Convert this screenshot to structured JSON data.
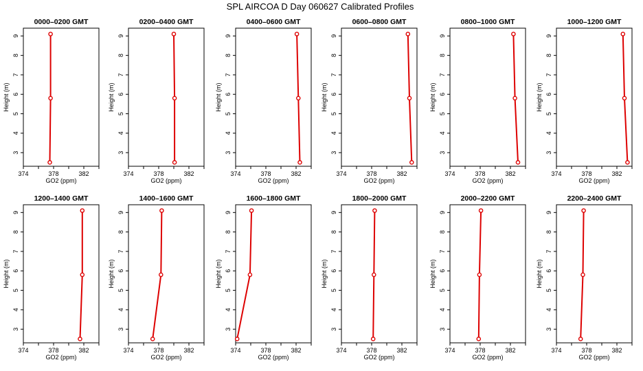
{
  "figure_title": "SPL AIRCOA D  Day 060627  Calibrated Profiles",
  "colors": {
    "series": "#dd0000",
    "axis": "#000000"
  },
  "chart_data": [
    {
      "type": "line",
      "title": "0000–0200 GMT",
      "xlabel": "GO2 (ppm)",
      "ylabel": "Height (m)",
      "xlim": [
        374,
        384
      ],
      "ylim": [
        2.3,
        9.4
      ],
      "xticks": [
        374,
        378,
        382
      ],
      "yticks": [
        3,
        4,
        5,
        6,
        7,
        8,
        9
      ],
      "grid": false,
      "series": [
        {
          "points": [
            {
              "x": 377.6,
              "y": 9.1
            },
            {
              "x": 377.6,
              "y": 5.8
            },
            {
              "x": 377.5,
              "y": 2.5
            }
          ]
        }
      ]
    },
    {
      "type": "line",
      "title": "0200–0400 GMT",
      "xlabel": "GO2 (ppm)",
      "ylabel": "Height (m)",
      "xlim": [
        374,
        384
      ],
      "ylim": [
        2.3,
        9.4
      ],
      "xticks": [
        374,
        378,
        382
      ],
      "yticks": [
        3,
        4,
        5,
        6,
        7,
        8,
        9
      ],
      "grid": false,
      "series": [
        {
          "points": [
            {
              "x": 380.0,
              "y": 9.1
            },
            {
              "x": 380.1,
              "y": 5.8
            },
            {
              "x": 380.1,
              "y": 2.5
            }
          ]
        }
      ]
    },
    {
      "type": "line",
      "title": "0400–0600 GMT",
      "xlabel": "GO2 (ppm)",
      "ylabel": "Height (m)",
      "xlim": [
        374,
        384
      ],
      "ylim": [
        2.3,
        9.4
      ],
      "xticks": [
        374,
        378,
        382
      ],
      "yticks": [
        3,
        4,
        5,
        6,
        7,
        8,
        9
      ],
      "grid": false,
      "series": [
        {
          "points": [
            {
              "x": 382.1,
              "y": 9.1
            },
            {
              "x": 382.3,
              "y": 5.8
            },
            {
              "x": 382.5,
              "y": 2.5
            }
          ]
        }
      ]
    },
    {
      "type": "line",
      "title": "0600–0800 GMT",
      "xlabel": "GO2 (ppm)",
      "ylabel": "Height (m)",
      "xlim": [
        374,
        384
      ],
      "ylim": [
        2.3,
        9.4
      ],
      "xticks": [
        374,
        378,
        382
      ],
      "yticks": [
        3,
        4,
        5,
        6,
        7,
        8,
        9
      ],
      "grid": false,
      "series": [
        {
          "points": [
            {
              "x": 382.8,
              "y": 9.1
            },
            {
              "x": 383.0,
              "y": 5.8
            },
            {
              "x": 383.3,
              "y": 2.5
            }
          ]
        }
      ]
    },
    {
      "type": "line",
      "title": "0800–1000 GMT",
      "xlabel": "GO2 (ppm)",
      "ylabel": "Height (m)",
      "xlim": [
        374,
        384
      ],
      "ylim": [
        2.3,
        9.4
      ],
      "xticks": [
        374,
        378,
        382
      ],
      "yticks": [
        3,
        4,
        5,
        6,
        7,
        8,
        9
      ],
      "grid": false,
      "series": [
        {
          "points": [
            {
              "x": 382.4,
              "y": 9.1
            },
            {
              "x": 382.6,
              "y": 5.8
            },
            {
              "x": 383.0,
              "y": 2.5
            }
          ]
        }
      ]
    },
    {
      "type": "line",
      "title": "1000–1200 GMT",
      "xlabel": "GO2 (ppm)",
      "ylabel": "Height (m)",
      "xlim": [
        374,
        384
      ],
      "ylim": [
        2.3,
        9.4
      ],
      "xticks": [
        374,
        378,
        382
      ],
      "yticks": [
        3,
        4,
        5,
        6,
        7,
        8,
        9
      ],
      "grid": false,
      "series": [
        {
          "points": [
            {
              "x": 382.8,
              "y": 9.1
            },
            {
              "x": 383.0,
              "y": 5.8
            },
            {
              "x": 383.4,
              "y": 2.5
            }
          ]
        }
      ]
    },
    {
      "type": "line",
      "title": "1200–1400 GMT",
      "xlabel": "GO2 (ppm)",
      "ylabel": "Height (m)",
      "xlim": [
        374,
        384
      ],
      "ylim": [
        2.3,
        9.4
      ],
      "xticks": [
        374,
        378,
        382
      ],
      "yticks": [
        3,
        4,
        5,
        6,
        7,
        8,
        9
      ],
      "grid": false,
      "series": [
        {
          "points": [
            {
              "x": 381.8,
              "y": 9.1
            },
            {
              "x": 381.8,
              "y": 5.8
            },
            {
              "x": 381.5,
              "y": 2.5
            }
          ]
        }
      ]
    },
    {
      "type": "line",
      "title": "1400–1600 GMT",
      "xlabel": "GO2 (ppm)",
      "ylabel": "Height (m)",
      "xlim": [
        374,
        384
      ],
      "ylim": [
        2.3,
        9.4
      ],
      "xticks": [
        374,
        378,
        382
      ],
      "yticks": [
        3,
        4,
        5,
        6,
        7,
        8,
        9
      ],
      "grid": false,
      "series": [
        {
          "points": [
            {
              "x": 378.4,
              "y": 9.1
            },
            {
              "x": 378.3,
              "y": 5.8
            },
            {
              "x": 377.2,
              "y": 2.5
            }
          ]
        }
      ]
    },
    {
      "type": "line",
      "title": "1600–1800 GMT",
      "xlabel": "GO2 (ppm)",
      "ylabel": "Height (m)",
      "xlim": [
        374,
        384
      ],
      "ylim": [
        2.3,
        9.4
      ],
      "xticks": [
        374,
        378,
        382
      ],
      "yticks": [
        3,
        4,
        5,
        6,
        7,
        8,
        9
      ],
      "grid": false,
      "series": [
        {
          "points": [
            {
              "x": 376.1,
              "y": 9.1
            },
            {
              "x": 375.9,
              "y": 5.8
            },
            {
              "x": 374.2,
              "y": 2.5
            }
          ]
        }
      ]
    },
    {
      "type": "line",
      "title": "1800–2000 GMT",
      "xlabel": "GO2 (ppm)",
      "ylabel": "Height (m)",
      "xlim": [
        374,
        384
      ],
      "ylim": [
        2.3,
        9.4
      ],
      "xticks": [
        374,
        378,
        382
      ],
      "yticks": [
        3,
        4,
        5,
        6,
        7,
        8,
        9
      ],
      "grid": false,
      "series": [
        {
          "points": [
            {
              "x": 378.4,
              "y": 9.1
            },
            {
              "x": 378.3,
              "y": 5.8
            },
            {
              "x": 378.2,
              "y": 2.5
            }
          ]
        }
      ]
    },
    {
      "type": "line",
      "title": "2000–2200 GMT",
      "xlabel": "GO2 (ppm)",
      "ylabel": "Height (m)",
      "xlim": [
        374,
        384
      ],
      "ylim": [
        2.3,
        9.4
      ],
      "xticks": [
        374,
        378,
        382
      ],
      "yticks": [
        3,
        4,
        5,
        6,
        7,
        8,
        9
      ],
      "grid": false,
      "series": [
        {
          "points": [
            {
              "x": 378.1,
              "y": 9.1
            },
            {
              "x": 377.9,
              "y": 5.8
            },
            {
              "x": 377.8,
              "y": 2.5
            }
          ]
        }
      ]
    },
    {
      "type": "line",
      "title": "2200–2400 GMT",
      "xlabel": "GO2 (ppm)",
      "ylabel": "Height (m)",
      "xlim": [
        374,
        384
      ],
      "ylim": [
        2.3,
        9.4
      ],
      "xticks": [
        374,
        378,
        382
      ],
      "yticks": [
        3,
        4,
        5,
        6,
        7,
        8,
        9
      ],
      "grid": false,
      "series": [
        {
          "points": [
            {
              "x": 377.6,
              "y": 9.1
            },
            {
              "x": 377.5,
              "y": 5.8
            },
            {
              "x": 377.2,
              "y": 2.5
            }
          ]
        }
      ]
    }
  ]
}
